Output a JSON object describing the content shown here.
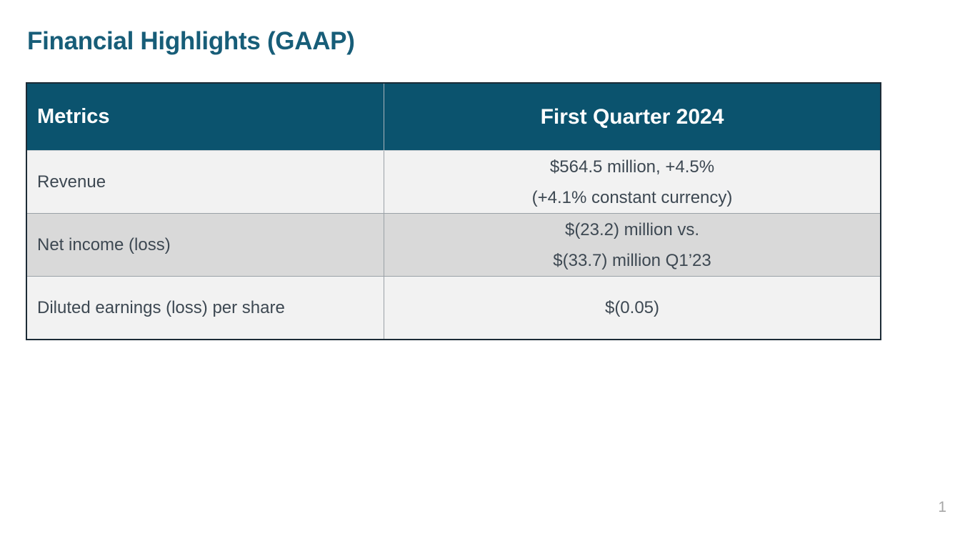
{
  "slide": {
    "title": "Financial Highlights (GAAP)",
    "page_number": "1",
    "table": {
      "columns": [
        "Metrics",
        "First Quarter 2024"
      ],
      "rows": [
        {
          "metric": "Revenue",
          "value_lines": [
            "$564.5 million, +4.5%",
            "(+4.1% constant currency)"
          ]
        },
        {
          "metric": "Net income (loss)",
          "value_lines": [
            "$(23.2) million vs.",
            "$(33.7) million Q1’23"
          ]
        },
        {
          "metric": "Diluted earnings (loss) per share",
          "value_lines": [
            "$(0.05)"
          ]
        }
      ]
    },
    "colors": {
      "title_text": "#175d78",
      "header_bg": "#0b536e",
      "header_text": "#ffffff",
      "row_light_bg": "#f2f2f2",
      "row_dark_bg": "#d9d9d9",
      "body_text": "#3d4852",
      "page_number_text": "#a6a6a6",
      "table_border": "#1c2b36"
    }
  }
}
